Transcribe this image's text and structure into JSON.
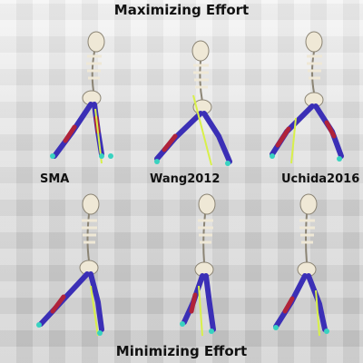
{
  "titles": {
    "top": "Maximizing Effort",
    "bottom": "Minimizing Effort"
  },
  "methods": [
    "SMA",
    "Wang2012",
    "Uchida2016"
  ],
  "colors": {
    "bone": "#efe8d6",
    "bone_edge": "#8b8474",
    "muscle_blue": "#3b2fb6",
    "muscle_red": "#b0233a",
    "grf": "#d8f04a",
    "foot": "#39d2c0"
  }
}
